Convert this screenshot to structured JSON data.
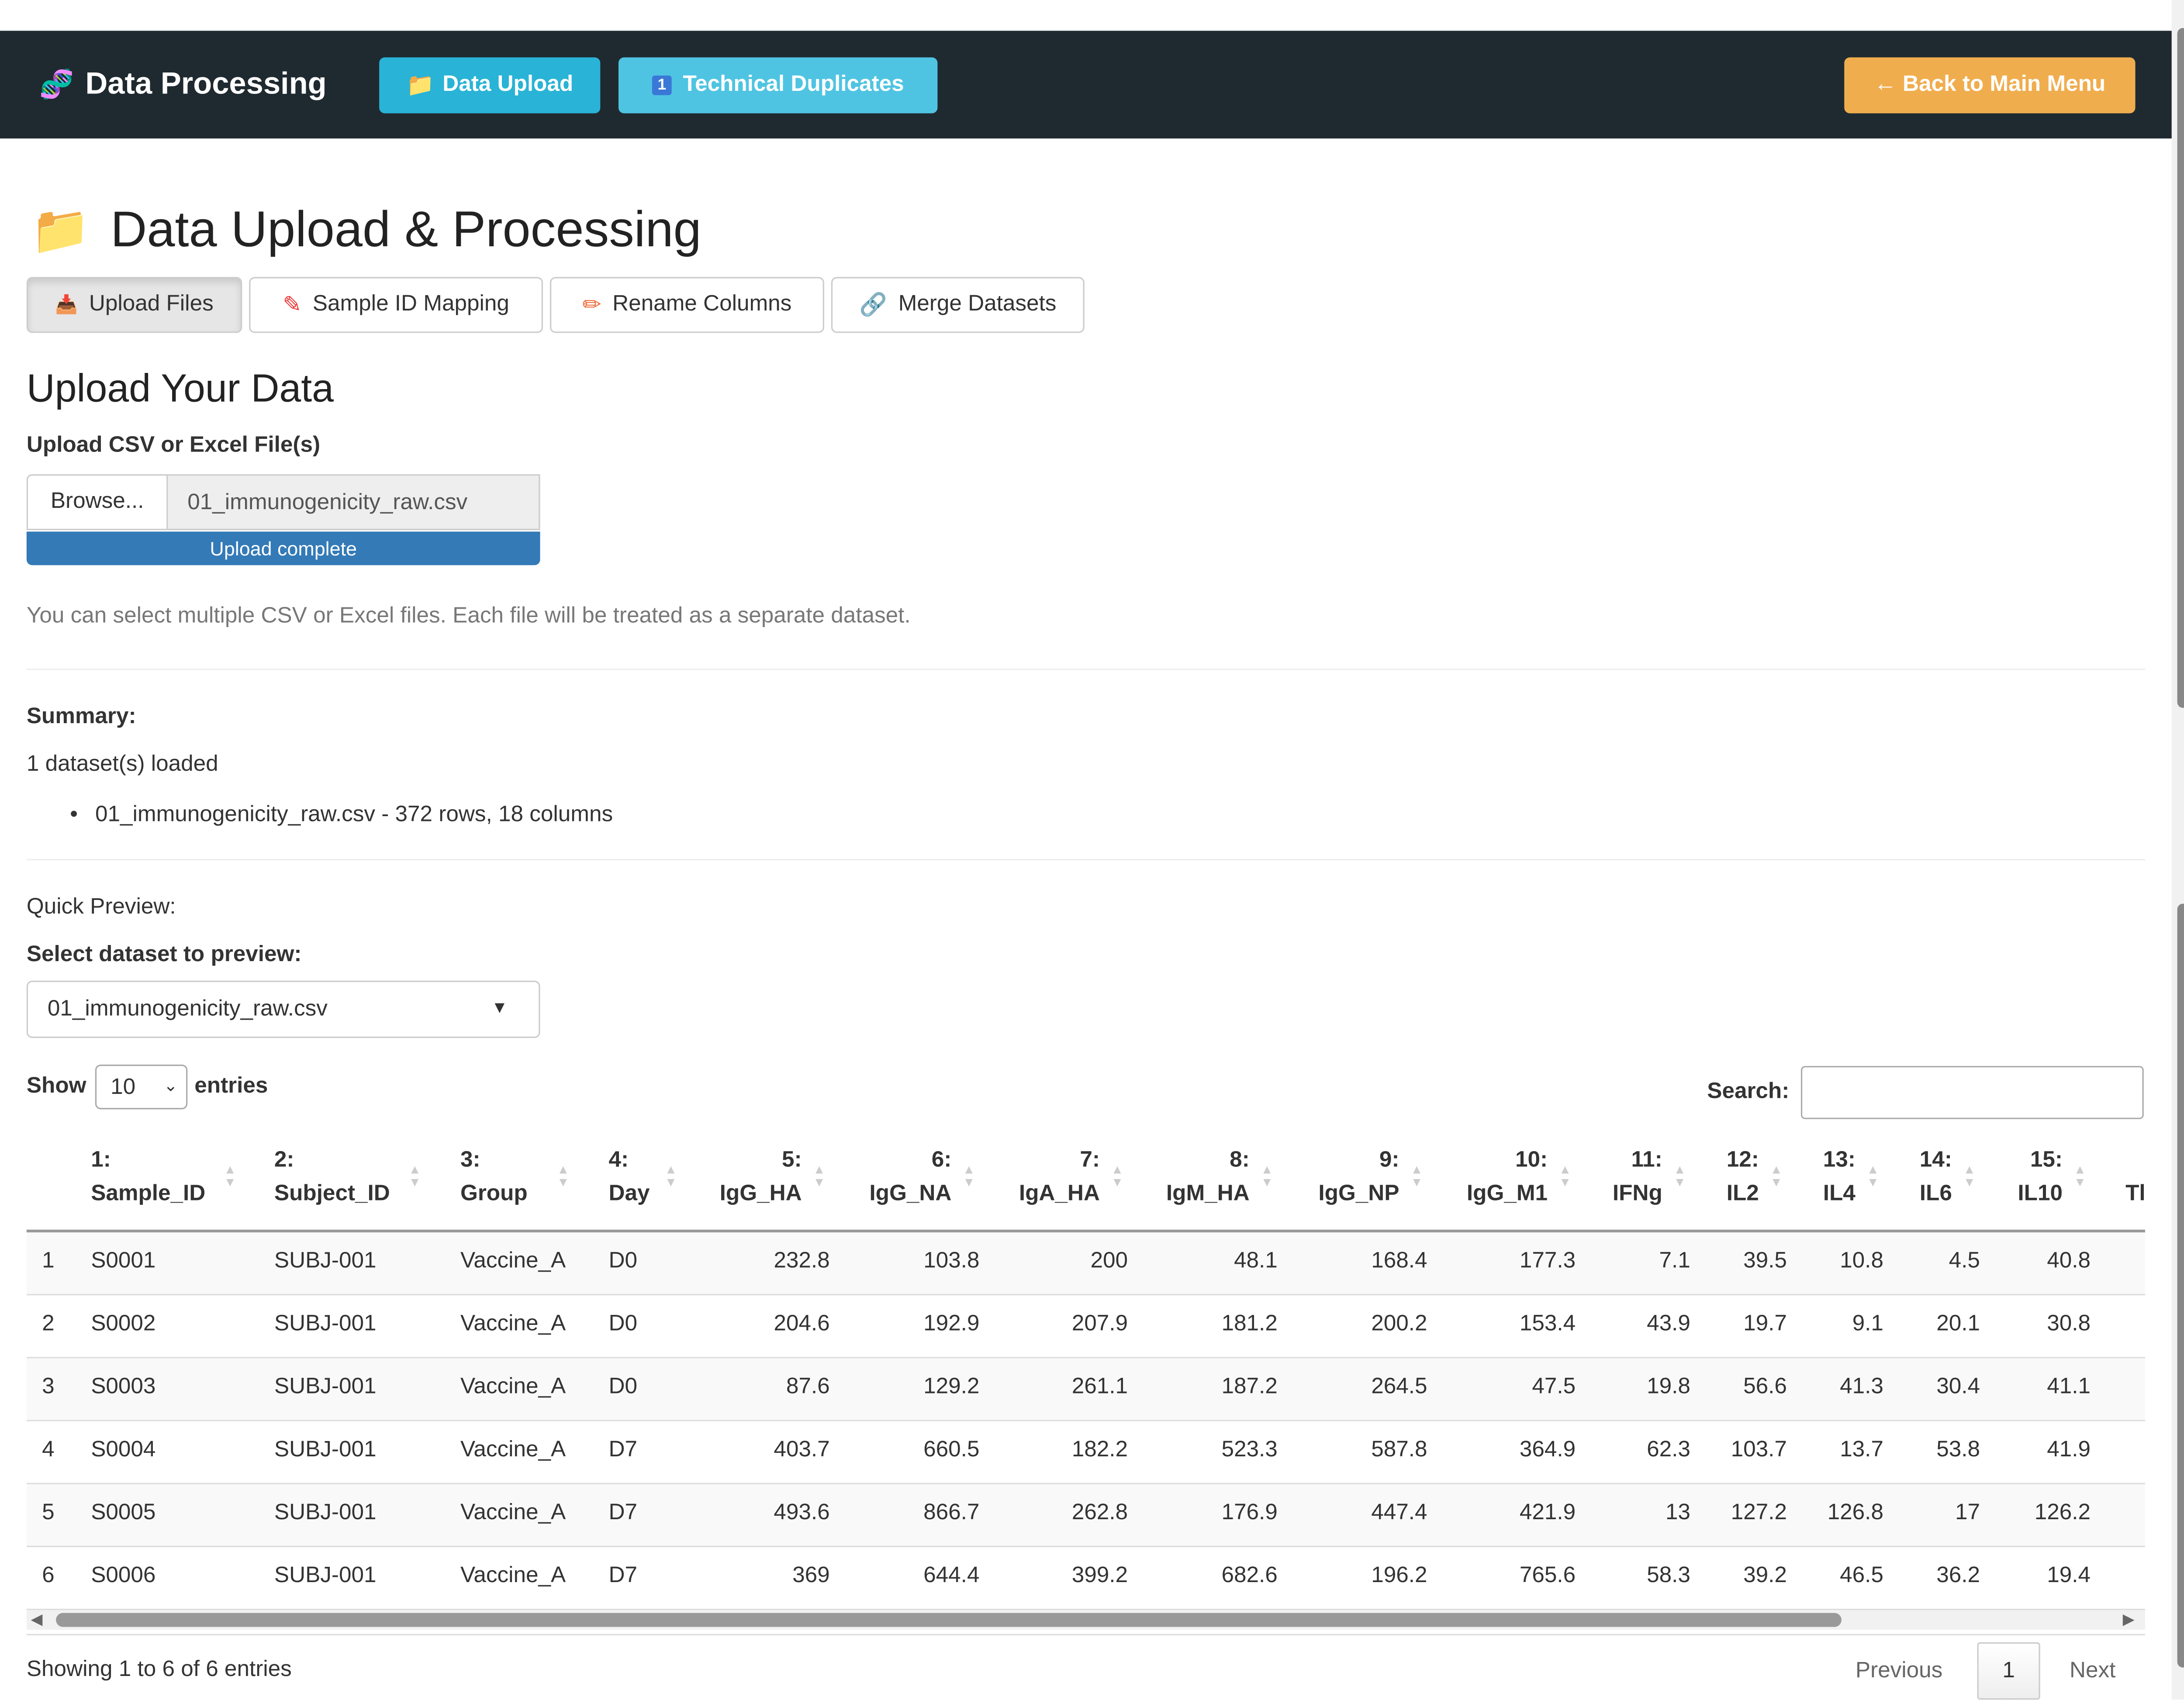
{
  "nav": {
    "brand": "Data Processing",
    "buttons": [
      "Data Upload",
      "Technical Duplicates"
    ],
    "back": "← Back to Main Menu"
  },
  "header": {
    "title": "Data Upload & Processing"
  },
  "tabs": [
    "Upload Files",
    "Sample ID Mapping",
    "Rename Columns",
    "Merge Datasets"
  ],
  "upload": {
    "heading": "Upload Your Data",
    "label": "Upload CSV or Excel File(s)",
    "browse": "Browse...",
    "file": "01_immunogenicity_raw.csv",
    "progress": "Upload complete",
    "help": "You can select multiple CSV or Excel files. Each file will be treated as a separate dataset."
  },
  "summary": {
    "label": "Summary:",
    "count": "1 dataset(s) loaded",
    "items": [
      "01_immunogenicity_raw.csv - 372 rows, 18 columns"
    ]
  },
  "preview": {
    "label": "Quick Preview:",
    "select_label": "Select dataset to preview:",
    "selected": "01_immunogenicity_raw.csv",
    "show": "Show",
    "entries_value": "10",
    "entries": "entries",
    "search": "Search:"
  },
  "table": {
    "headers": [
      [
        "1:",
        "Sample_ID"
      ],
      [
        "2:",
        "Subject_ID"
      ],
      [
        "3:",
        "Group"
      ],
      [
        "4:",
        "Day"
      ],
      [
        "5:",
        "IgG_HA"
      ],
      [
        "6:",
        "IgG_NA"
      ],
      [
        "7:",
        "IgA_HA"
      ],
      [
        "8:",
        "IgM_HA"
      ],
      [
        "9:",
        "IgG_NP"
      ],
      [
        "10:",
        "IgG_M1"
      ],
      [
        "11:",
        "IFNg"
      ],
      [
        "12:",
        "IL2"
      ],
      [
        "13:",
        "IL4"
      ],
      [
        "14:",
        "IL6"
      ],
      [
        "15:",
        "IL10"
      ],
      [
        "",
        "Tl"
      ]
    ],
    "rows": [
      [
        "1",
        "S0001",
        "SUBJ-001",
        "Vaccine_A",
        "D0",
        232.8,
        103.8,
        200,
        48.1,
        168.4,
        177.3,
        7.1,
        39.5,
        10.8,
        4.5,
        40.8
      ],
      [
        "2",
        "S0002",
        "SUBJ-001",
        "Vaccine_A",
        "D0",
        204.6,
        192.9,
        207.9,
        181.2,
        200.2,
        153.4,
        43.9,
        19.7,
        9.1,
        20.1,
        30.8
      ],
      [
        "3",
        "S0003",
        "SUBJ-001",
        "Vaccine_A",
        "D0",
        87.6,
        129.2,
        261.1,
        187.2,
        264.5,
        47.5,
        19.8,
        56.6,
        41.3,
        30.4,
        41.1
      ],
      [
        "4",
        "S0004",
        "SUBJ-001",
        "Vaccine_A",
        "D7",
        403.7,
        660.5,
        182.2,
        523.3,
        587.8,
        364.9,
        62.3,
        103.7,
        13.7,
        53.8,
        41.9
      ],
      [
        "5",
        "S0005",
        "SUBJ-001",
        "Vaccine_A",
        "D7",
        493.6,
        866.7,
        262.8,
        176.9,
        447.4,
        421.9,
        13,
        127.2,
        126.8,
        17,
        126.2
      ],
      [
        "6",
        "S0006",
        "SUBJ-001",
        "Vaccine_A",
        "D7",
        369,
        644.4,
        399.2,
        682.6,
        196.2,
        765.6,
        58.3,
        39.2,
        46.5,
        36.2,
        19.4
      ]
    ],
    "info": "Showing 1 to 6 of 6 entries",
    "prev": "Previous",
    "page": "1",
    "next": "Next"
  }
}
